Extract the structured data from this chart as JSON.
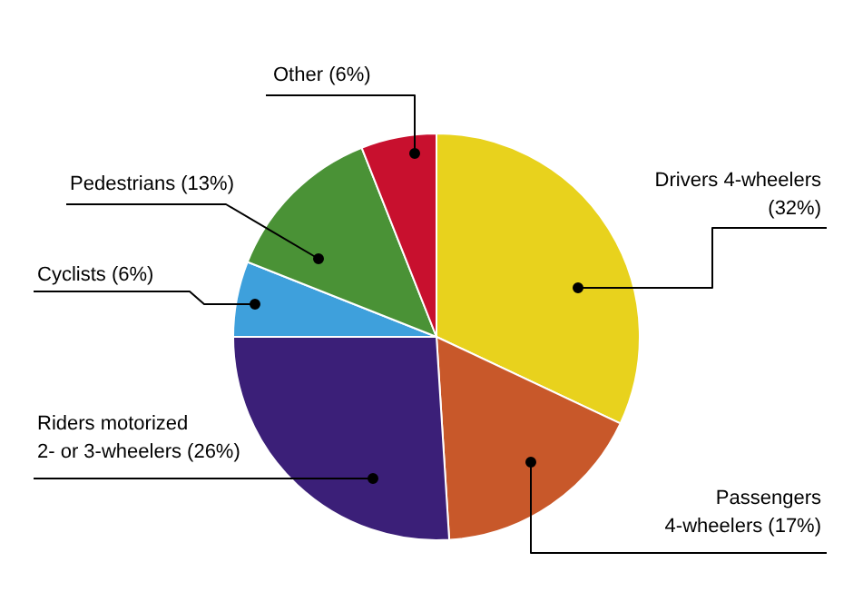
{
  "chart_data": {
    "type": "pie",
    "categories": [
      "Drivers 4-wheelers",
      "Passengers 4-wheelers",
      "Riders motorized 2- or 3-wheelers",
      "Cyclists",
      "Pedestrians",
      "Other"
    ],
    "values": [
      32,
      17,
      26,
      6,
      13,
      6
    ],
    "value_labels": [
      "(32%)",
      "(17%)",
      "(26%)",
      "(6%)",
      "(13%)",
      "(6%)"
    ],
    "colors": [
      "#e8d21d",
      "#c8582a",
      "#3b1f78",
      "#3ea0dc",
      "#4a9236",
      "#c8102e"
    ]
  }
}
